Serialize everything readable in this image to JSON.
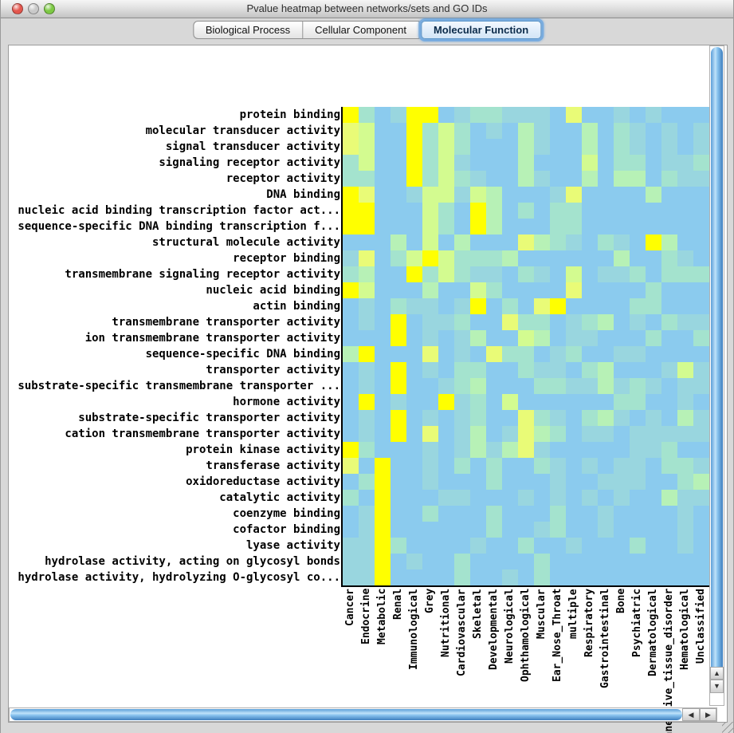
{
  "window": {
    "title": "Pvalue heatmap between networks/sets and GO IDs",
    "traffic_lights": [
      {
        "name": "close",
        "color": "#E4574E"
      },
      {
        "name": "minimize",
        "color": "#C9C9C9"
      },
      {
        "name": "zoom",
        "color": "#7DC944"
      }
    ]
  },
  "tabs": [
    {
      "label": "Biological Process",
      "selected": false
    },
    {
      "label": "Cellular Component",
      "selected": false
    },
    {
      "label": "Molecular Function",
      "selected": true
    }
  ],
  "scrollbars": {
    "up": "▲",
    "down": "▼",
    "left": "◀",
    "right": "▶"
  },
  "chart_data": {
    "type": "heatmap",
    "title": "Pvalue heatmap between networks/sets and GO IDs",
    "x_categories": [
      "Cancer",
      "Endocrine",
      "Metabolic",
      "Renal",
      "Immunological",
      "Grey",
      "Nutritional",
      "Cardiovascular",
      "Skeletal",
      "Developmental",
      "Neurological",
      "Ophthamological",
      "Muscular",
      "Ear_Nose_Throat",
      "multiple",
      "Respiratory",
      "Gastrointestinal",
      "Bone",
      "Psychiatric",
      "Dermatological",
      "Connective_tissue_disorder",
      "Hematological",
      "Unclassified"
    ],
    "y_categories": [
      "protein binding",
      "molecular transducer activity",
      "signal transducer activity",
      "signaling receptor activity",
      "receptor activity",
      "DNA binding",
      "nucleic acid binding transcription factor act...",
      "sequence-specific DNA binding transcription f...",
      "structural molecule activity",
      "receptor binding",
      "transmembrane signaling receptor activity",
      "nucleic acid binding",
      "actin binding",
      "transmembrane transporter activity",
      "ion transmembrane transporter activity",
      "sequence-specific DNA binding",
      "transporter activity",
      "substrate-specific transmembrane transporter ...",
      "hormone activity",
      "substrate-specific transporter activity",
      "cation transmembrane transporter activity",
      "protein kinase activity",
      "transferase activity",
      "oxidoreductase activity",
      "catalytic activity",
      "coenzyme binding",
      "cofactor binding",
      "lyase activity",
      "hydrolase activity, acting on glycosyl bonds",
      "hydrolase activity, hydrolyzing O-glycosyl co..."
    ],
    "palette": {
      "b": "#8BCBEE",
      "c": "#99D6DF",
      "t": "#A4E3CE",
      "m": "#B7F1B6",
      "g": "#D3FB90",
      "p": "#E9FB77",
      "Y": "#FFFF00"
    },
    "palette_note": "b=light blue (high p-value) through Y=bright yellow (low p-value)",
    "grid": [
      "YtbcYYbcttcccbpbbcbcbbb",
      "pgbbYtgtbcbmcbbmbtcbcbc",
      "pgbbYtgtbbbmcbbmbtcbcbc",
      "tgbbYtgcbbbmbbbgbttbcct",
      "ttbbYtgtcbbmcbbmbmmbtcc",
      "Ypbbcggcgmbbbcpbbbbmbbb",
      "YYbbbgtbYmbtbttbbbbbbbb",
      "YYbbbgtbYmbbbttbbbbbbbb",
      "bbbmbgbmbbbpmtcbtcbYmbb",
      "cpbtgYgtttmbbbbbbmbbtcb",
      "tmbbYtgtccbtcbgbcctbttt",
      "Ygbbbmbbgtbbbbpbbbbtbbb",
      "bcbtccbcYbtbpYbbbbttbbb",
      "bcbYbcctbbpttbctmbcbtcc",
      "bbbYbcbcmbbgmbccbbbtbbt",
      "mYbbbpbcbpttbctbbccbbbb",
      "bcbYbcbttbbtccbtmbbbcgc",
      "bcbYbbctmbbbttccmctcbcc",
      "bYbcbbYctbgbbbbbbttbbcb",
      "bcbYbcbctbbptcbtmcbcbmc",
      "bcbYbpbcmbcpmtbccbccccc",
      "Ytbbbcbcmcmpcbbbbbcctbb",
      "pbYbbcbtbtbbtcbcbccbttc",
      "btYbbcbbbtbbbcbbcccbbtm",
      "tbYbbbccbbbcbcbcbcbbmcc",
      "bcYbbtbbbtbbbtbbcbbbbcb",
      "bcYbbbbbbtbbctbbcbbbbcb",
      "ccYtbbbbcbbtbbcbbbtbbcb",
      "ccYbcbbtbbbbtbbbbbbbbbb",
      "ccYbbbbtbbcbtbbbbbbbbbb"
    ]
  }
}
